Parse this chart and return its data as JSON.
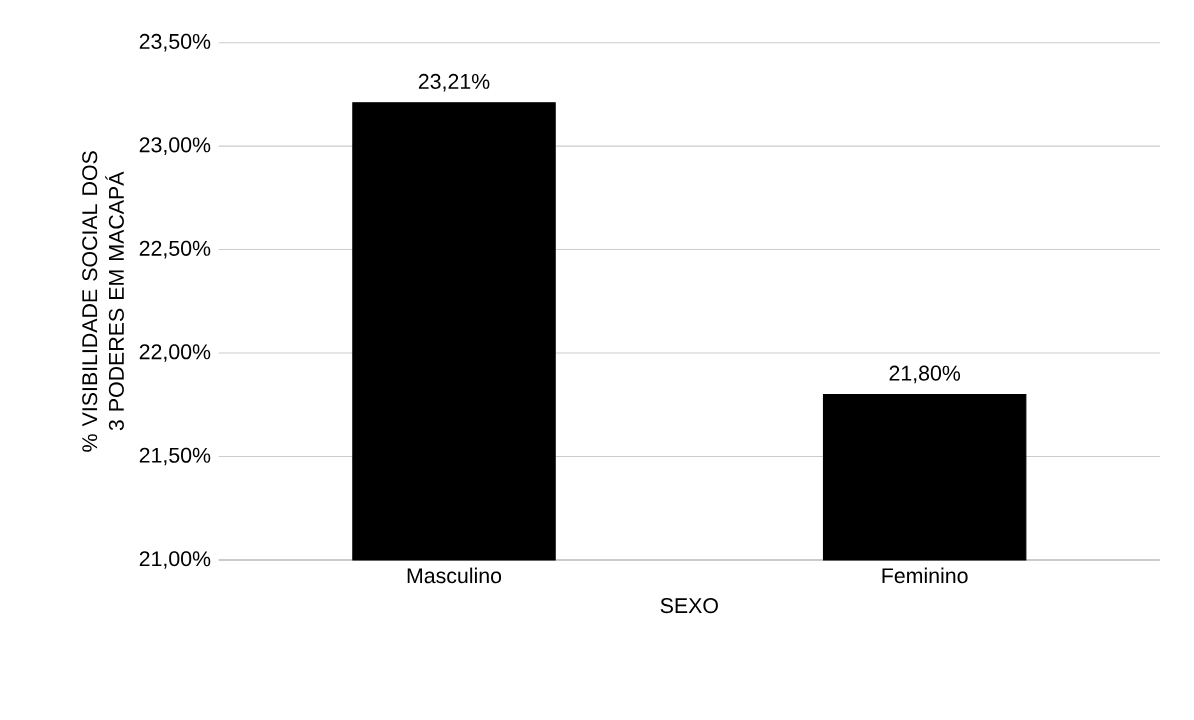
{
  "chart_data": {
    "type": "bar",
    "xlabel": "SEXO",
    "ylabel": "% VISIBILIDADE SOCIAL DOS 3 PODERES EM MACAPÁ",
    "categories": [
      "Masculino",
      "Feminino"
    ],
    "values": [
      23.21,
      21.8
    ],
    "value_labels": [
      "23,21%",
      "21,80%"
    ],
    "color": "#000000",
    "ylim": [
      21,
      23.5
    ],
    "yticks": [
      {
        "value": 21,
        "label": "21,00%"
      },
      {
        "value": 21.5,
        "label": "21,50%"
      },
      {
        "value": 22,
        "label": "22,00%"
      },
      {
        "value": 22.5,
        "label": "22,50%"
      },
      {
        "value": 23,
        "label": "23,00%"
      },
      {
        "value": 23.5,
        "label": "23,50%"
      }
    ],
    "grid": "y"
  }
}
